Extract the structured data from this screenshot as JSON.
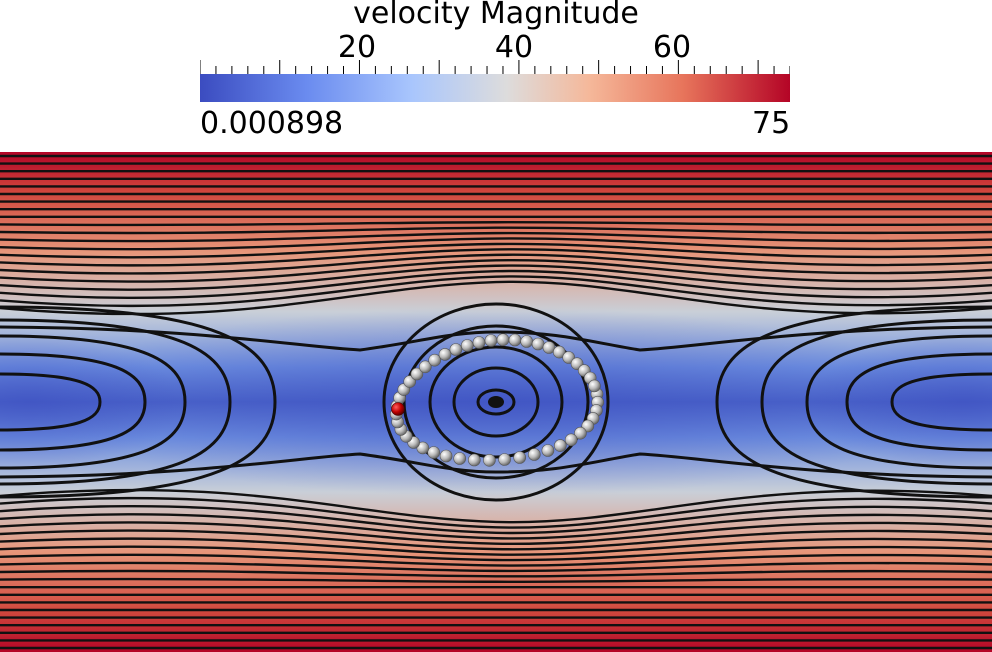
{
  "legend": {
    "title": "velocity Magnitude",
    "min_label": "0.000898",
    "max_label": "75",
    "ticks": [
      {
        "value": 20,
        "label": "20"
      },
      {
        "value": 40,
        "label": "40"
      },
      {
        "value": 60,
        "label": "60"
      }
    ],
    "range": [
      0.000898,
      75
    ],
    "colormap": [
      "#3b4cc0",
      "#6a8bef",
      "#a9c6fd",
      "#dddcdc",
      "#f5b89a",
      "#e7745b",
      "#b40426"
    ]
  },
  "field": {
    "streamline_color": "#111111",
    "bead_color": "#b8b8b8",
    "highlight_bead_color": "#c00000"
  }
}
